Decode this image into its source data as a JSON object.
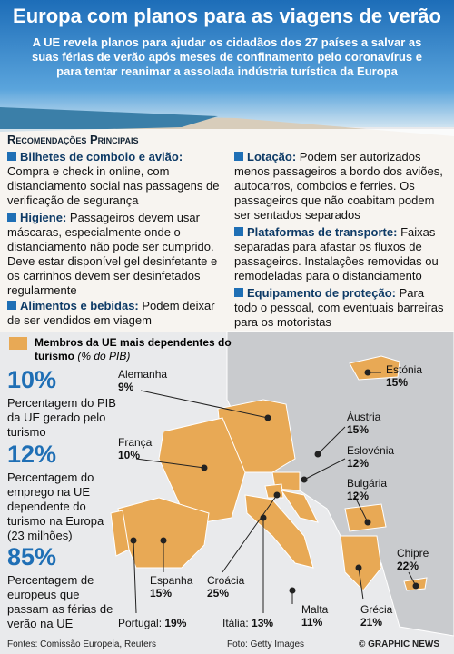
{
  "header": {
    "title": "Europa com planos para as viagens de verão",
    "subtitle": "A UE revela planos para ajudar os cidadãos dos 27 países a salvar as suas férias de verão após meses de confinamento pelo coronavírus e para tentar reanimar a assolada indústria turística da Europa"
  },
  "recommendations": {
    "heading": "Recomendações Principais",
    "items": [
      {
        "title": "Bilhetes de comboio e avião:",
        "text": "Compra e check in online, com distanciamento social nas passagens de verificação de segurança"
      },
      {
        "title": "Higiene:",
        "text": "Passageiros devem usar máscaras, especialmente onde o distanciamento não pode ser cumprido. Deve estar disponível gel desinfetante e os carrinhos devem ser desinfetados regularmente"
      },
      {
        "title": "Alimentos e bebidas:",
        "text": "Podem deixar de ser vendidos em viagem"
      },
      {
        "title": "Lotação:",
        "text": "Podem ser autorizados menos passageiros a bordo dos aviões, autocarros, comboios e ferries. Os passageiros que não coabitam podem ser sentados separados"
      },
      {
        "title": "Plataformas de transporte:",
        "text": "Faixas separadas para afastar os fluxos de passageiros. Instalações removidas ou remodeladas para o distanciamento"
      },
      {
        "title": "Equipamento de proteção:",
        "text": "Para todo o pessoal, com eventuais barreiras para os motoristas"
      }
    ]
  },
  "map": {
    "legend": "Membros da UE mais dependentes do turismo",
    "legend_unit": "(% do PIB)",
    "countries": [
      {
        "name": "Alemanha",
        "value": "9%"
      },
      {
        "name": "França",
        "value": "10%"
      },
      {
        "name": "Espanha",
        "value": "15%"
      },
      {
        "name": "Croácia",
        "value": "25%"
      },
      {
        "name": "Portugal:",
        "value": "19%"
      },
      {
        "name": "Itália:",
        "value": "13%"
      },
      {
        "name": "Malta",
        "value": "11%"
      },
      {
        "name": "Grécia",
        "value": "21%"
      },
      {
        "name": "Chipre",
        "value": "22%"
      },
      {
        "name": "Bulgária",
        "value": "12%"
      },
      {
        "name": "Eslovénia",
        "value": "12%"
      },
      {
        "name": "Áustria",
        "value": "15%"
      },
      {
        "name": "Estónia",
        "value": "15%"
      }
    ]
  },
  "stats": [
    {
      "value": "10%",
      "text": "Percentagem do PIB da UE gerado pelo turismo"
    },
    {
      "value": "12%",
      "text": "Percentagem do emprego na UE dependente do turismo na Europa (23 milhões)"
    },
    {
      "value": "85%",
      "text": "Percentagem de europeus que passam as férias de verão na UE"
    }
  ],
  "footer": {
    "sources": "Fontes: Comissão Europeia, Reuters",
    "photo": "Foto: Getty Images",
    "credit": "© GRAPHIC NEWS"
  }
}
